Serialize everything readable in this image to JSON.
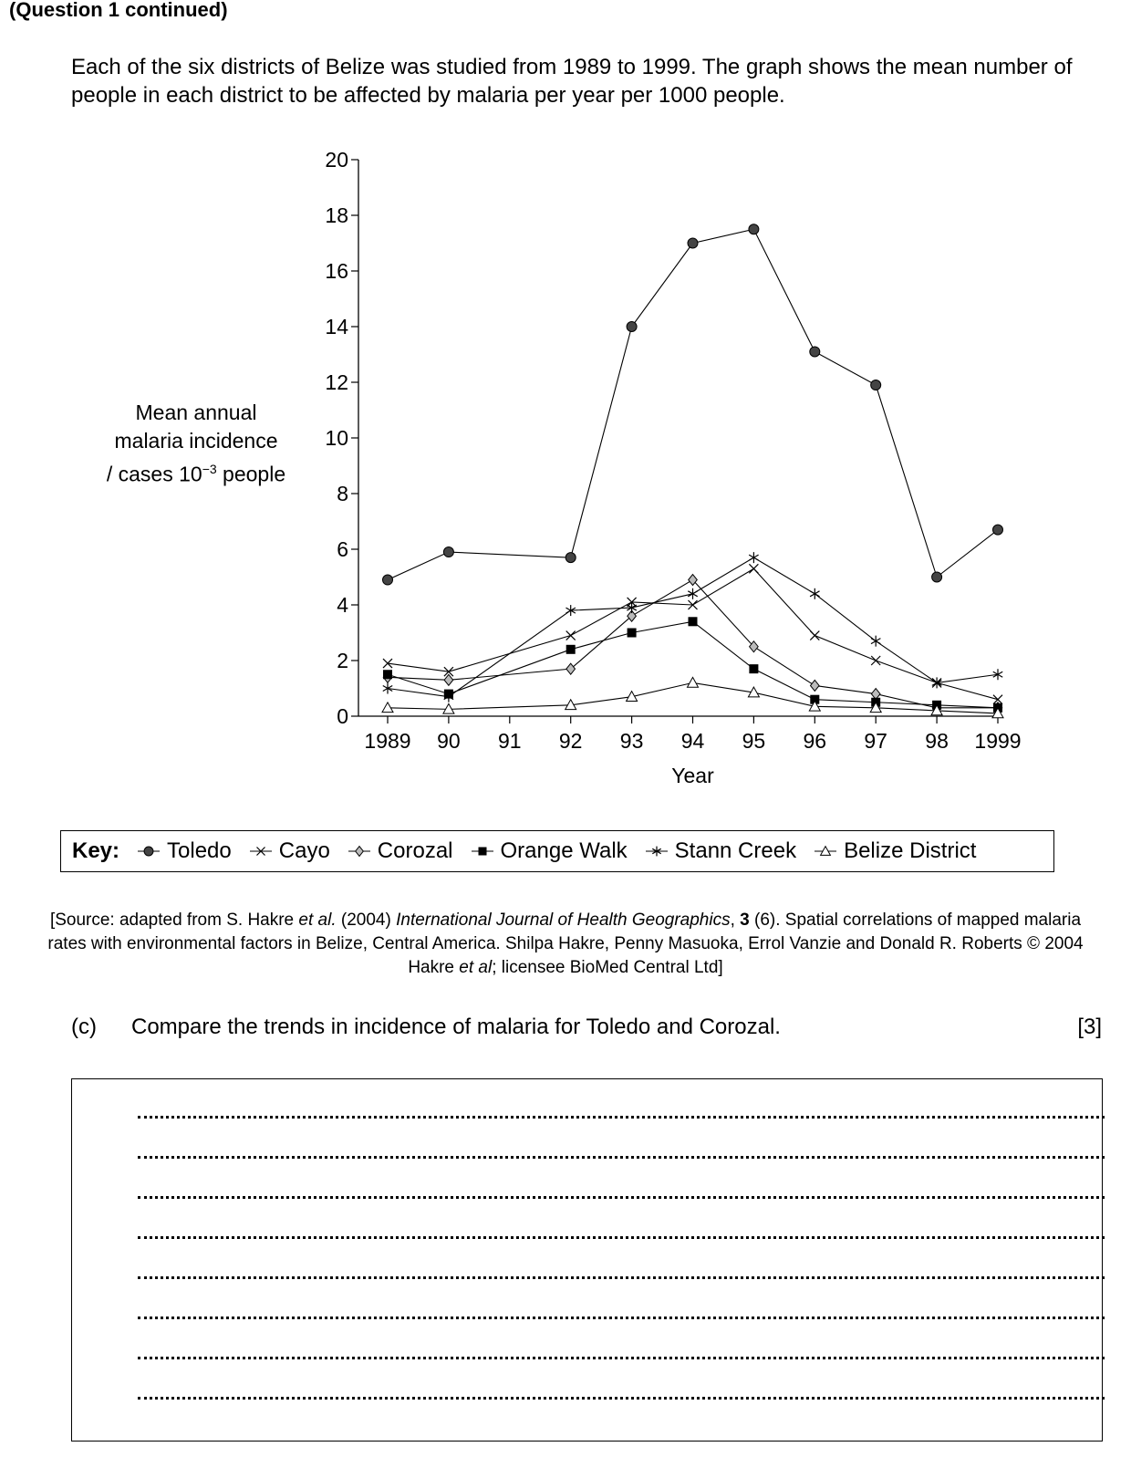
{
  "header": "(Question 1 continued)",
  "intro": "Each of the six districts of Belize was studied from 1989 to 1999.  The graph shows the mean number of people in each district to be affected by malaria per year per 1000 people.",
  "ylabel": {
    "line1": "Mean annual",
    "line2": "malaria incidence",
    "line3a": "/ cases 10",
    "line3sup": "−3",
    "line3b": " people"
  },
  "chart_data": {
    "type": "line",
    "title": "",
    "xlabel": "Year",
    "ylabel": "Mean annual malaria incidence / cases 10−3 people",
    "ylim": [
      0,
      20
    ],
    "yticks": [
      0,
      2,
      4,
      6,
      8,
      10,
      12,
      14,
      16,
      18,
      20
    ],
    "xlim": [
      1989,
      1999
    ],
    "xticks": [
      1989,
      1990,
      1991,
      1992,
      1993,
      1994,
      1995,
      1996,
      1997,
      1998,
      1999
    ],
    "xtick_labels": [
      "1989",
      "90",
      "91",
      "92",
      "93",
      "94",
      "95",
      "96",
      "97",
      "98",
      "1999"
    ],
    "grid": false,
    "series": [
      {
        "name": "Toledo",
        "marker": "circle",
        "x": [
          1989,
          1990,
          1992,
          1993,
          1994,
          1995,
          1996,
          1997,
          1998,
          1999
        ],
        "y": [
          4.9,
          5.9,
          5.7,
          14.0,
          17.0,
          17.5,
          13.1,
          11.9,
          5.0,
          6.7
        ]
      },
      {
        "name": "Cayo",
        "marker": "x",
        "x": [
          1989,
          1990,
          1992,
          1993,
          1994,
          1995,
          1996,
          1997,
          1998,
          1999
        ],
        "y": [
          1.9,
          1.6,
          2.9,
          4.1,
          4.0,
          5.3,
          2.9,
          2.0,
          1.2,
          0.6
        ]
      },
      {
        "name": "Corozal",
        "marker": "diamond",
        "x": [
          1989,
          1990,
          1992,
          1993,
          1994,
          1995,
          1996,
          1997,
          1998,
          1999
        ],
        "y": [
          1.4,
          1.3,
          1.7,
          3.6,
          4.9,
          2.5,
          1.1,
          0.8,
          0.3,
          0.3
        ]
      },
      {
        "name": "Orange Walk",
        "marker": "square",
        "x": [
          1989,
          1990,
          1992,
          1993,
          1994,
          1995,
          1996,
          1997,
          1998,
          1999
        ],
        "y": [
          1.5,
          0.8,
          2.4,
          3.0,
          3.4,
          1.7,
          0.6,
          0.5,
          0.4,
          0.3
        ]
      },
      {
        "name": "Stann Creek",
        "marker": "asterisk",
        "x": [
          1989,
          1990,
          1992,
          1993,
          1994,
          1995,
          1996,
          1997,
          1998,
          1999
        ],
        "y": [
          1.0,
          0.7,
          3.8,
          3.9,
          4.4,
          5.7,
          4.4,
          2.7,
          1.2,
          1.5
        ]
      },
      {
        "name": "Belize District",
        "marker": "triangle",
        "x": [
          1989,
          1990,
          1992,
          1993,
          1994,
          1995,
          1996,
          1997,
          1998,
          1999
        ],
        "y": [
          0.3,
          0.25,
          0.4,
          0.7,
          1.2,
          0.85,
          0.35,
          0.3,
          0.2,
          0.1
        ]
      }
    ]
  },
  "key": {
    "label": "Key:"
  },
  "source": {
    "p1": "[Source: adapted from S. Hakre ",
    "p2": "et al.",
    "p3": " (2004) ",
    "p4": "International Journal of Health Geographics",
    "p5": ", ",
    "p6": "3",
    "p7": " (6). Spatial correlations of mapped malaria rates with environmental factors in Belize, Central America. Shilpa Hakre, Penny Masuoka, Errol Vanzie and Donald R. Roberts © 2004 Hakre ",
    "p8": "et al",
    "p9": "; licensee BioMed Central Ltd]"
  },
  "question": {
    "number": "(c)",
    "text": "Compare the trends in incidence of malaria for Toledo and Corozal.",
    "marks": "[3]"
  }
}
